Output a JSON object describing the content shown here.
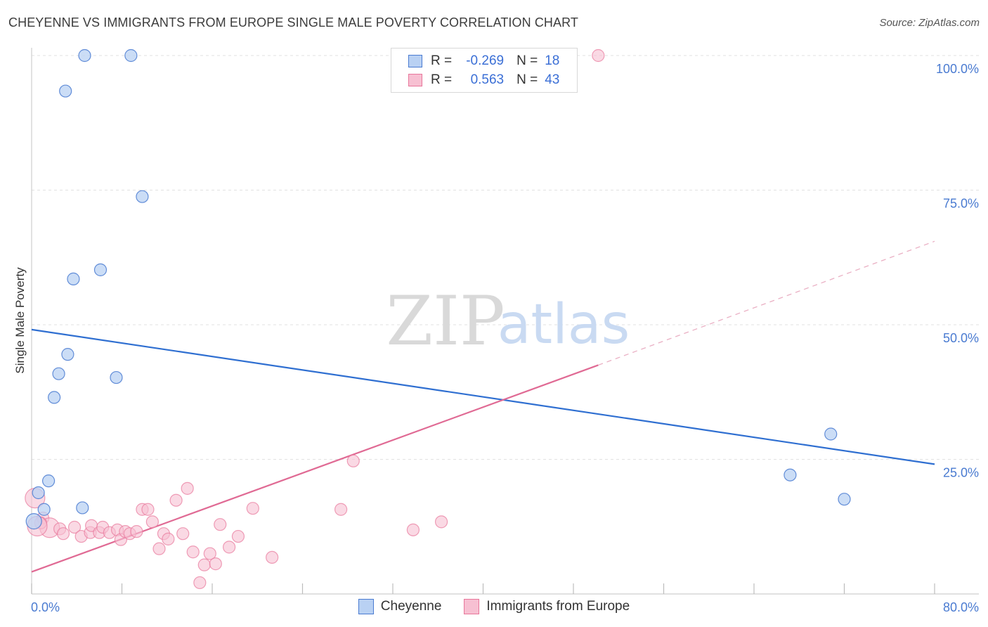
{
  "title": "CHEYENNE VS IMMIGRANTS FROM EUROPE SINGLE MALE POVERTY CORRELATION CHART",
  "source": "Source: ZipAtlas.com",
  "watermark": {
    "zip": "ZIP",
    "atlas": "atlas"
  },
  "colors": {
    "blue": "#4a7bd1",
    "blue_fill": "#b9d1f3",
    "pink": "#e8779b",
    "pink_fill": "#f7c0d2",
    "blue_line": "#2f6fd1",
    "pink_line": "#e06a94"
  },
  "legend": {
    "rows": [
      {
        "r_label": "R =",
        "r_value": "-0.269",
        "n_label": "N =",
        "n_value": "18"
      },
      {
        "r_label": "R =",
        "r_value": "0.563",
        "n_label": "N =",
        "n_value": "43"
      }
    ]
  },
  "bottom_legend": [
    "Cheyenne",
    "Immigrants from Europe"
  ],
  "chart_data": {
    "type": "scatter",
    "title": "CHEYENNE VS IMMIGRANTS FROM EUROPE SINGLE MALE POVERTY CORRELATION CHART",
    "xlabel": "",
    "ylabel": "Single Male Poverty",
    "xlim": [
      0,
      80
    ],
    "ylim": [
      0,
      100
    ],
    "x_tick_labels": [
      "0.0%",
      "80.0%"
    ],
    "y_ticks": [
      25,
      50,
      75,
      100
    ],
    "y_tick_labels": [
      "25.0%",
      "50.0%",
      "75.0%",
      "100.0%"
    ],
    "series": [
      {
        "name": "Cheyenne",
        "r": -0.269,
        "n": 18,
        "points": [
          [
            4.7,
            100
          ],
          [
            8.8,
            100
          ],
          [
            3.0,
            93.4
          ],
          [
            9.8,
            73.8
          ],
          [
            6.1,
            60.2
          ],
          [
            3.7,
            58.5
          ],
          [
            3.2,
            44.5
          ],
          [
            2.4,
            40.9
          ],
          [
            7.5,
            40.2
          ],
          [
            2.0,
            36.5
          ],
          [
            1.5,
            21.0
          ],
          [
            0.6,
            18.8
          ],
          [
            1.1,
            15.7
          ],
          [
            4.5,
            16.0
          ],
          [
            70.8,
            29.7
          ],
          [
            67.2,
            22.1
          ],
          [
            72.0,
            17.6
          ],
          [
            0.2,
            13.5
          ]
        ],
        "trend": {
          "x0": 0,
          "y0": 49.1,
          "x1": 80,
          "y1": 24.1,
          "style": "solid"
        }
      },
      {
        "name": "Immigrants from Europe",
        "r": 0.563,
        "n": 43,
        "points": [
          [
            50.2,
            100
          ],
          [
            0.3,
            17.8
          ],
          [
            1.0,
            14.1
          ],
          [
            1.6,
            12.3
          ],
          [
            0.8,
            13.2
          ],
          [
            2.5,
            12.1
          ],
          [
            2.8,
            11.2
          ],
          [
            3.8,
            12.4
          ],
          [
            4.4,
            10.7
          ],
          [
            5.2,
            11.4
          ],
          [
            5.3,
            12.7
          ],
          [
            6.0,
            11.4
          ],
          [
            6.3,
            12.4
          ],
          [
            6.9,
            11.4
          ],
          [
            7.6,
            11.9
          ],
          [
            7.9,
            10.1
          ],
          [
            8.3,
            11.6
          ],
          [
            8.7,
            11.2
          ],
          [
            9.3,
            11.6
          ],
          [
            9.8,
            15.7
          ],
          [
            10.3,
            15.7
          ],
          [
            10.7,
            13.4
          ],
          [
            11.3,
            8.4
          ],
          [
            11.7,
            11.2
          ],
          [
            12.1,
            10.2
          ],
          [
            12.8,
            17.4
          ],
          [
            13.4,
            11.2
          ],
          [
            13.8,
            19.6
          ],
          [
            14.3,
            7.8
          ],
          [
            15.3,
            5.4
          ],
          [
            15.8,
            7.5
          ],
          [
            16.3,
            5.6
          ],
          [
            16.7,
            12.9
          ],
          [
            17.5,
            8.7
          ],
          [
            18.3,
            10.7
          ],
          [
            19.6,
            15.9
          ],
          [
            21.3,
            6.8
          ],
          [
            28.5,
            24.7
          ],
          [
            27.4,
            15.7
          ],
          [
            33.8,
            11.9
          ],
          [
            36.3,
            13.4
          ],
          [
            14.9,
            2.1
          ],
          [
            0.5,
            12.6
          ]
        ],
        "trend": {
          "x0": 0,
          "y0": 4.1,
          "x1": 50.2,
          "y1": 42.5,
          "style": "solid",
          "ext_x1": 80,
          "ext_y1": 65.5,
          "ext_style": "dashed"
        }
      }
    ]
  }
}
